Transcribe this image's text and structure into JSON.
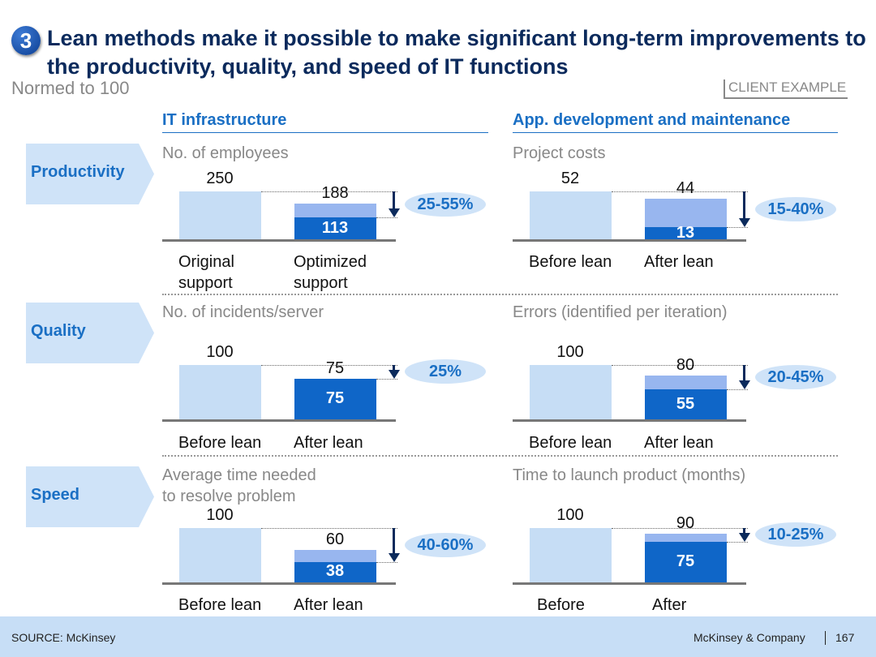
{
  "header": {
    "number": "3",
    "title": "Lean methods make it possible to make significant long-term improvements to the productivity, quality, and speed of IT functions",
    "subtitle": "Normed to 100",
    "tag": "CLIENT EXAMPLE"
  },
  "columns": [
    "IT infrastructure",
    "App. development and maintenance"
  ],
  "rows": [
    "Productivity",
    "Quality",
    "Speed"
  ],
  "footer": {
    "source": "SOURCE: McKinsey",
    "company": "McKinsey & Company",
    "page": "167"
  },
  "colors": {
    "before": "#c6ddf5",
    "after_light": "#98b6ef",
    "after_dark": "#0f66c8",
    "accent": "#1a6fc4"
  },
  "chart_data": [
    {
      "type": "bar",
      "row": "Productivity",
      "column": "IT infrastructure",
      "title": "No. of employees",
      "categories": [
        "Original\nsupport",
        "Optimized\nsupport"
      ],
      "before": 250,
      "after_total": 188,
      "after_optimized": 113,
      "improvement": "25-55%"
    },
    {
      "type": "bar",
      "row": "Productivity",
      "column": "App. development and maintenance",
      "title": "Project costs",
      "categories": [
        "Before lean",
        "After lean"
      ],
      "before": 52,
      "after_total": 44,
      "after_optimized": 13,
      "improvement": "15-40%"
    },
    {
      "type": "bar",
      "row": "Quality",
      "column": "IT infrastructure",
      "title": "No. of incidents/server",
      "categories": [
        "Before lean",
        "After lean"
      ],
      "before": 100,
      "after_total": 75,
      "after_optimized": 75,
      "improvement": "25%"
    },
    {
      "type": "bar",
      "row": "Quality",
      "column": "App. development and maintenance",
      "title": "Errors (identified per iteration)",
      "categories": [
        "Before lean",
        "After lean"
      ],
      "before": 100,
      "after_total": 80,
      "after_optimized": 55,
      "improvement": "20-45%"
    },
    {
      "type": "bar",
      "row": "Speed",
      "column": "IT infrastructure",
      "title": "Average time needed\nto resolve problem",
      "categories": [
        "Before lean",
        "After lean"
      ],
      "before": 100,
      "after_total": 60,
      "after_optimized": 38,
      "improvement": "40-60%"
    },
    {
      "type": "bar",
      "row": "Speed",
      "column": "App. development and maintenance",
      "title": "Time to launch product (months)",
      "categories": [
        "Before",
        "After"
      ],
      "before": 100,
      "after_total": 90,
      "after_optimized": 75,
      "improvement": "10-25%"
    }
  ]
}
